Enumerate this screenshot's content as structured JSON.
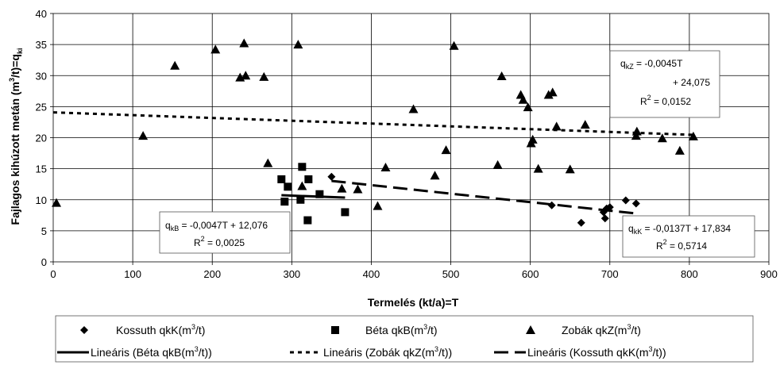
{
  "chart_data": {
    "type": "scatter",
    "xlabel": "Termelés (kt/a)=T",
    "ylabel": "Fajlagos kihúzott metán (m³/t)=qki",
    "xlim": [
      0,
      900
    ],
    "ylim": [
      0,
      40
    ],
    "xticks": [
      0,
      100,
      200,
      300,
      400,
      500,
      600,
      700,
      800,
      900
    ],
    "yticks": [
      0,
      5,
      10,
      15,
      20,
      25,
      30,
      35,
      40
    ],
    "grid": true,
    "legend_position": "bottom",
    "series": [
      {
        "name": "Kossuth qkK(m³/t)",
        "marker": "diamond",
        "points": [
          [
            350,
            13.7
          ],
          [
            627,
            9.1
          ],
          [
            664,
            6.3
          ],
          [
            692,
            8.0
          ],
          [
            694,
            7.0
          ],
          [
            696,
            8.6
          ],
          [
            700,
            8.8
          ],
          [
            720,
            9.9
          ],
          [
            733,
            9.4
          ]
        ]
      },
      {
        "name": "Béta qkB(m³/t)",
        "marker": "square",
        "points": [
          [
            287,
            13.3
          ],
          [
            291,
            9.7
          ],
          [
            295,
            12.1
          ],
          [
            311,
            10.0
          ],
          [
            313,
            15.3
          ],
          [
            320,
            6.7
          ],
          [
            321,
            13.3
          ],
          [
            335,
            10.9
          ],
          [
            367,
            8.0
          ]
        ]
      },
      {
        "name": "Zobák qkZ(m³/t)",
        "marker": "triangle",
        "points": [
          [
            4,
            9.5
          ],
          [
            113,
            20.3
          ],
          [
            153,
            31.6
          ],
          [
            204,
            34.2
          ],
          [
            235,
            29.7
          ],
          [
            240,
            35.2
          ],
          [
            242,
            30.0
          ],
          [
            265,
            29.8
          ],
          [
            270,
            15.9
          ],
          [
            308,
            35.0
          ],
          [
            313,
            12.2
          ],
          [
            363,
            11.8
          ],
          [
            383,
            11.7
          ],
          [
            408,
            9.0
          ],
          [
            418,
            15.2
          ],
          [
            453,
            24.6
          ],
          [
            480,
            13.9
          ],
          [
            494,
            18.0
          ],
          [
            504,
            34.8
          ],
          [
            559,
            15.6
          ],
          [
            564,
            29.9
          ],
          [
            588,
            26.9
          ],
          [
            591,
            26.1
          ],
          [
            597,
            24.9
          ],
          [
            601,
            19.1
          ],
          [
            603,
            19.7
          ],
          [
            610,
            15.0
          ],
          [
            623,
            26.9
          ],
          [
            628,
            27.3
          ],
          [
            633,
            21.8
          ],
          [
            650,
            14.9
          ],
          [
            669,
            22.1
          ],
          [
            733,
            20.3
          ],
          [
            734,
            21.0
          ],
          [
            766,
            19.9
          ],
          [
            788,
            17.9
          ],
          [
            805,
            20.2
          ]
        ]
      }
    ],
    "trendlines": [
      {
        "name": "Lineáris (Béta qkB(m³/t))",
        "style": "solid",
        "slope": -0.0047,
        "intercept": 12.076,
        "x_range": [
          287,
          367
        ]
      },
      {
        "name": "Lineáris (Zobák qkZ(m³/t))",
        "style": "dotted",
        "slope": -0.0045,
        "intercept": 24.075,
        "x_range": [
          0,
          805
        ]
      },
      {
        "name": "Lineáris (Kossuth qkK(m³/t))",
        "style": "dashed",
        "slope": -0.0137,
        "intercept": 17.834,
        "x_range": [
          350,
          733
        ]
      }
    ],
    "annotations": [
      {
        "id": "zobak",
        "q": "q",
        "sub": "kZ",
        "line1": " = -0,0045T",
        "line2": "+ 24,075",
        "r2_value": " = 0,0152"
      },
      {
        "id": "beta",
        "q": "q",
        "sub": "kB",
        "line1": " = -0,0047T + 12,076",
        "r2_value": " = 0,0025"
      },
      {
        "id": "kossuth",
        "q": "q",
        "sub": "kK",
        "line1": " = -0,0137T + 17,834",
        "r2_value": " = 0,5714"
      }
    ],
    "legend": [
      {
        "marker": "diamond",
        "label": "Kossuth qkK(m",
        "sup": "3",
        "tail": "/t)"
      },
      {
        "marker": "square",
        "label": "Béta qkB(m",
        "sup": "3",
        "tail": "/t)"
      },
      {
        "marker": "triangle",
        "label": "Zobák qkZ(m",
        "sup": "3",
        "tail": "/t)"
      },
      {
        "marker": "solid",
        "label": "Lineáris (Béta qkB(m",
        "sup": "3",
        "tail": "/t))"
      },
      {
        "marker": "dotted",
        "label": "Lineáris (Zobák qkZ(m",
        "sup": "3",
        "tail": "/t))"
      },
      {
        "marker": "dashed",
        "label": "Lineáris (Kossuth qkK(m",
        "sup": "3",
        "tail": "/t))"
      }
    ]
  }
}
